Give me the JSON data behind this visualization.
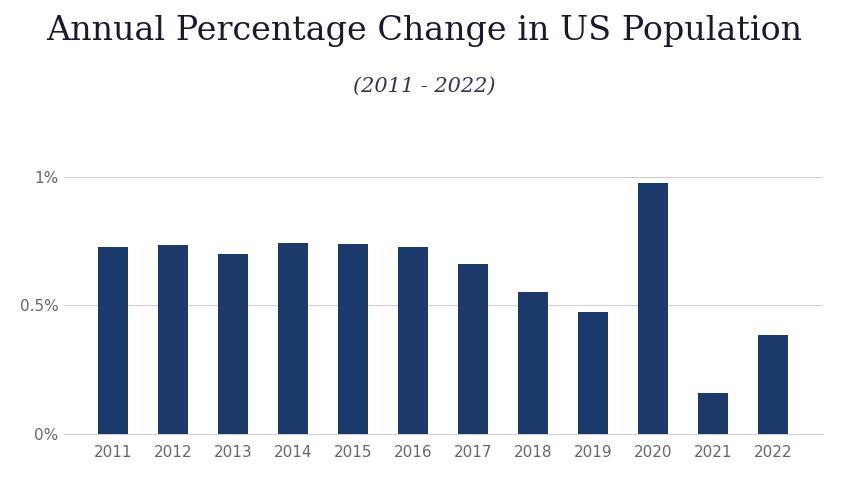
{
  "title": "Annual Percentage Change in US Population",
  "subtitle": "(2011 - 2022)",
  "years": [
    2011,
    2012,
    2013,
    2014,
    2015,
    2016,
    2017,
    2018,
    2019,
    2020,
    2021,
    2022
  ],
  "values": [
    0.00728,
    0.00736,
    0.00698,
    0.00742,
    0.00737,
    0.00727,
    0.00661,
    0.00551,
    0.00474,
    0.00974,
    0.00158,
    0.00384
  ],
  "bar_color": "#1b3a6b",
  "background_color": "#ffffff",
  "ylim": [
    0,
    0.0115
  ],
  "yticks": [
    0,
    0.005,
    0.01
  ],
  "ytick_labels": [
    "0%",
    "0.5%",
    "1%"
  ],
  "grid_color": "#cccccc",
  "title_fontsize": 24,
  "subtitle_fontsize": 15,
  "tick_fontsize": 11,
  "title_color": "#1a1a2e",
  "subtitle_color": "#333355",
  "bar_width": 0.5
}
